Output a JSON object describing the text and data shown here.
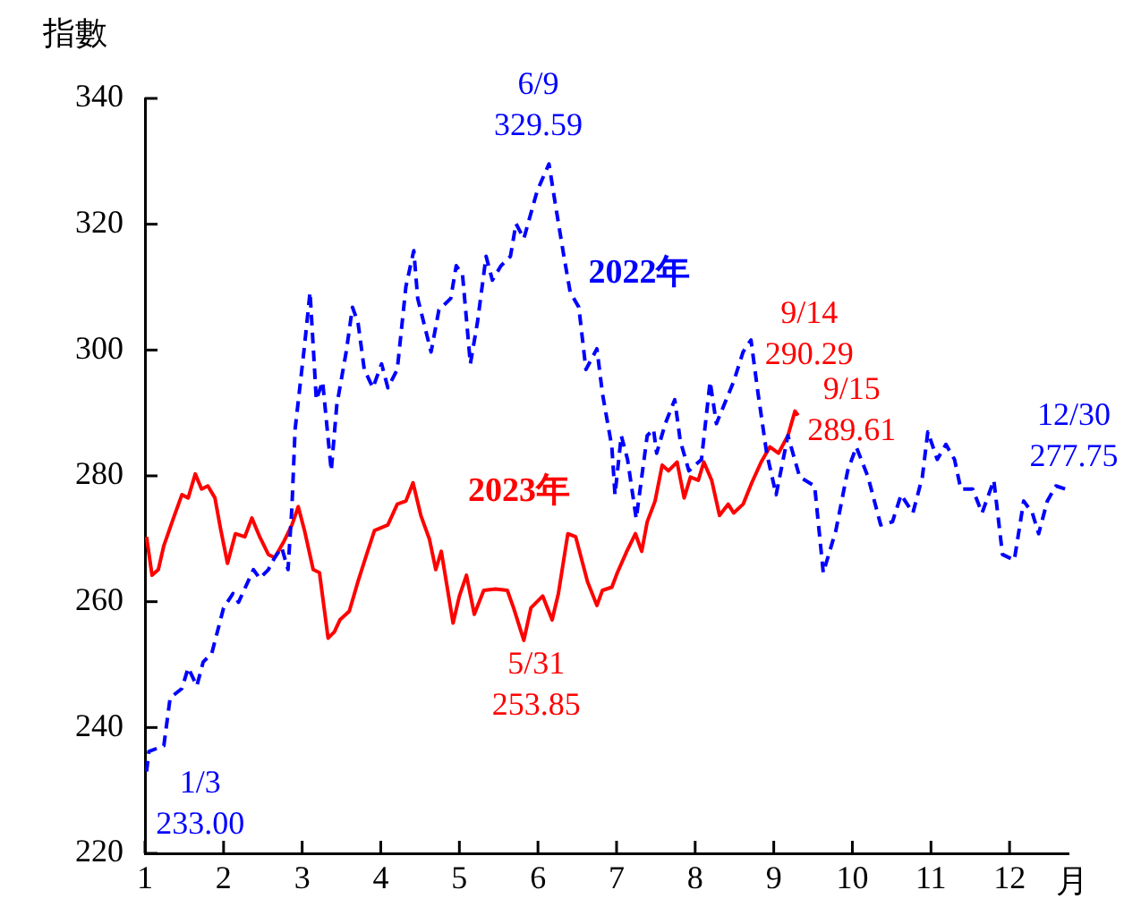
{
  "chart_data": {
    "type": "line",
    "ylabel": "指數",
    "xlabel": "月",
    "xlim": [
      1,
      12.75
    ],
    "xticks": [
      1,
      2,
      3,
      4,
      5,
      6,
      7,
      8,
      9,
      10,
      11,
      12
    ],
    "ylim": [
      220,
      340
    ],
    "yticks": [
      220,
      240,
      260,
      280,
      300,
      320,
      340
    ],
    "grid": false,
    "legend": false,
    "marker": "none",
    "series": [
      {
        "name": "2022年",
        "color": "#0000ff",
        "line_style": "dashed",
        "x": [
          1.02,
          1.05,
          1.24,
          1.32,
          1.47,
          1.55,
          1.66,
          1.74,
          1.85,
          2.0,
          2.12,
          2.19,
          2.38,
          2.46,
          2.57,
          2.65,
          2.74,
          2.82,
          2.87,
          2.91,
          3.03,
          3.1,
          3.18,
          3.26,
          3.37,
          3.44,
          3.56,
          3.64,
          3.71,
          3.79,
          3.9,
          4.01,
          4.09,
          4.21,
          4.32,
          4.42,
          4.47,
          4.64,
          4.74,
          4.89,
          4.96,
          5.04,
          5.14,
          5.23,
          5.34,
          5.42,
          5.53,
          5.65,
          5.72,
          5.82,
          5.99,
          6.14,
          6.23,
          6.33,
          6.41,
          6.52,
          6.61,
          6.75,
          6.82,
          6.94,
          6.98,
          7.06,
          7.14,
          7.25,
          7.39,
          7.47,
          7.51,
          7.62,
          7.74,
          7.81,
          7.92,
          8.08,
          8.19,
          8.27,
          8.49,
          8.61,
          8.71,
          8.8,
          8.91,
          9.03,
          9.18,
          9.33,
          9.52,
          9.63,
          9.79,
          9.94,
          10.05,
          10.2,
          10.36,
          10.51,
          10.62,
          10.77,
          10.89,
          10.96,
          11.08,
          11.19,
          11.3,
          11.38,
          11.53,
          11.65,
          11.8,
          11.91,
          12.06,
          12.18,
          12.29,
          12.37,
          12.48,
          12.59,
          12.75
        ],
        "values": [
          233.0,
          236.2,
          237.1,
          244.7,
          246.2,
          249.5,
          246.6,
          250.4,
          251.8,
          259.0,
          261.3,
          259.9,
          265.1,
          263.7,
          265.1,
          267.0,
          268.6,
          265.1,
          275.1,
          287.4,
          300.7,
          309.2,
          292.1,
          295.0,
          280.8,
          291.2,
          299.7,
          306.8,
          304.4,
          296.9,
          294.0,
          297.8,
          294.0,
          296.9,
          310.1,
          315.8,
          308.2,
          299.7,
          306.4,
          308.2,
          313.4,
          312.0,
          297.8,
          304.4,
          314.9,
          311.1,
          313.4,
          314.9,
          320.1,
          317.7,
          325.3,
          329.59,
          322.5,
          314.9,
          309.2,
          306.8,
          296.9,
          300.2,
          293.1,
          284.6,
          277.0,
          286.4,
          282.6,
          273.2,
          286.4,
          287.4,
          283.6,
          288.3,
          292.1,
          285.6,
          280.8,
          282.6,
          295.0,
          288.3,
          295.0,
          299.7,
          301.6,
          293.1,
          283.6,
          277.0,
          286.4,
          279.8,
          278.4,
          264.6,
          271.3,
          280.8,
          284.6,
          279.8,
          272.2,
          272.7,
          277.0,
          274.1,
          279.8,
          287.0,
          282.6,
          285.0,
          282.6,
          277.9,
          277.9,
          274.1,
          279.3,
          267.5,
          266.6,
          276.0,
          274.1,
          270.8,
          276.0,
          278.4,
          277.75
        ]
      },
      {
        "name": "2023年",
        "color": "#ff0000",
        "line_style": "solid",
        "x": [
          1.02,
          1.09,
          1.17,
          1.24,
          1.36,
          1.47,
          1.55,
          1.64,
          1.72,
          1.8,
          1.89,
          1.96,
          2.05,
          2.15,
          2.27,
          2.36,
          2.46,
          2.57,
          2.65,
          2.76,
          2.87,
          2.95,
          3.03,
          3.14,
          3.22,
          3.33,
          3.41,
          3.48,
          3.6,
          3.71,
          3.82,
          3.92,
          4.09,
          4.21,
          4.32,
          4.41,
          4.51,
          4.62,
          4.7,
          4.77,
          4.92,
          5.0,
          5.09,
          5.19,
          5.31,
          5.46,
          5.61,
          5.69,
          5.82,
          5.91,
          6.06,
          6.18,
          6.26,
          6.38,
          6.48,
          6.63,
          6.75,
          6.82,
          6.94,
          7.01,
          7.13,
          7.24,
          7.32,
          7.39,
          7.49,
          7.58,
          7.66,
          7.77,
          7.86,
          7.94,
          8.04,
          8.11,
          8.21,
          8.31,
          8.42,
          8.49,
          8.61,
          8.72,
          8.84,
          8.95,
          9.06,
          9.18,
          9.27,
          9.31
        ],
        "values": [
          270.3,
          264.2,
          265.1,
          268.9,
          273.2,
          277.0,
          276.5,
          280.3,
          277.9,
          278.4,
          276.5,
          271.7,
          266.1,
          270.8,
          270.3,
          273.3,
          270.3,
          267.5,
          267.0,
          269.4,
          272.2,
          275.1,
          271.3,
          265.1,
          264.6,
          254.2,
          255.2,
          257.1,
          258.5,
          263.2,
          267.5,
          271.3,
          272.2,
          275.5,
          276.0,
          278.9,
          273.7,
          269.9,
          265.1,
          268.0,
          256.6,
          260.9,
          264.2,
          258.0,
          261.8,
          262.0,
          261.8,
          259.0,
          253.85,
          259.0,
          260.9,
          257.1,
          261.3,
          270.8,
          270.3,
          263.2,
          259.4,
          261.8,
          262.3,
          264.6,
          268.0,
          270.8,
          268.0,
          272.7,
          276.0,
          281.7,
          280.8,
          282.2,
          276.5,
          279.8,
          279.3,
          282.2,
          279.3,
          273.7,
          275.5,
          274.1,
          275.5,
          278.9,
          282.2,
          284.6,
          283.6,
          286.4,
          290.29,
          289.61
        ]
      }
    ],
    "annotations": [
      {
        "text": "1/3\n233.00",
        "x": 1.02,
        "y": 233.0
      },
      {
        "text": "6/9\n329.59",
        "x": 6.14,
        "y": 329.59
      },
      {
        "text": "5/31\n253.85",
        "x": 5.82,
        "y": 253.85
      },
      {
        "text": "9/14\n290.29",
        "x": 9.27,
        "y": 290.29
      },
      {
        "text": "9/15\n289.61",
        "x": 9.31,
        "y": 289.61
      },
      {
        "text": "12/30\n277.75",
        "x": 12.75,
        "y": 277.75
      }
    ]
  }
}
